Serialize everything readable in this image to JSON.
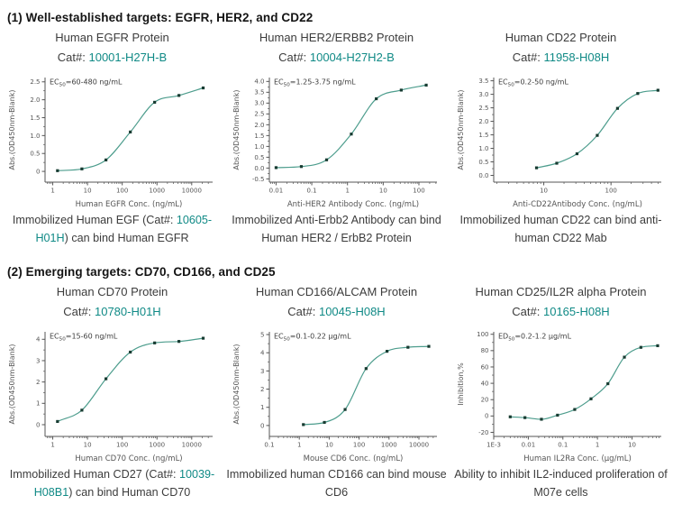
{
  "colors": {
    "teal_text": "#108a86",
    "curve": "#4d9d8d",
    "marker": "#173b31",
    "heading": "#141414",
    "body_text": "#3c3c3c",
    "axis": "#555555"
  },
  "sections": [
    {
      "heading": "(1) Well-established targets: EGFR, HER2, and CD22",
      "panels": [
        {
          "title": "Human EGFR Protein",
          "cat_label": "Cat#: ",
          "cat_number": "10001-H27H-B",
          "caption": [
            {
              "t": "Immobilized Human EGF (Cat#: "
            },
            {
              "t": "10605-H01H",
              "teal": true
            },
            {
              "t": ") can bind Human EGFR"
            }
          ]
        },
        {
          "title": "Human HER2/ERBB2 Protein",
          "cat_label": "Cat#: ",
          "cat_number": "10004-H27H2-B",
          "caption": [
            {
              "t": "Immobilized Anti-Erbb2 Antibody can bind Human HER2 / ErbB2 Protein"
            }
          ]
        },
        {
          "title": "Human CD22 Protein",
          "cat_label": "Cat#: ",
          "cat_number": "11958-H08H",
          "caption": [
            {
              "t": "Immobilized human CD22 can bind anti-human CD22 Mab"
            }
          ]
        }
      ]
    },
    {
      "heading": "(2) Emerging targets: CD70, CD166, and CD25",
      "panels": [
        {
          "title": "Human CD70 Protein",
          "cat_label": "Cat#: ",
          "cat_number": "10780-H01H",
          "caption": [
            {
              "t": "Immobilized Human CD27 (Cat#: "
            },
            {
              "t": "10039-H08B1",
              "teal": true
            },
            {
              "t": ") can bind Human CD70"
            }
          ]
        },
        {
          "title": "Human CD166/ALCAM Protein",
          "cat_label": "Cat#: ",
          "cat_number": "10045-H08H",
          "caption": [
            {
              "t": "Immobilized human CD166 can bind mouse CD6"
            }
          ]
        },
        {
          "title": "Human CD25/IL2R alpha Protein",
          "cat_label": "Cat#: ",
          "cat_number": "10165-H08H",
          "caption": [
            {
              "t": "Ability to inhibit IL2-induced proliferation of M07e cells"
            }
          ]
        }
      ]
    }
  ],
  "chart_data": [
    {
      "type": "line",
      "xlog": true,
      "x": [
        1.37,
        6.9,
        34,
        171,
        857,
        4290,
        21400
      ],
      "y": [
        0.02,
        0.07,
        0.32,
        1.1,
        1.93,
        2.12,
        2.33
      ],
      "xlim": [
        0.6,
        40000
      ],
      "ylim": [
        -0.3,
        2.62
      ],
      "yticks": [
        0,
        0.5,
        1.0,
        1.5,
        2.0,
        2.5
      ],
      "ytick_labels": [
        "0",
        "0.5",
        "1.0",
        "1.5",
        "2.0",
        "2.5"
      ],
      "xticks": [
        1,
        10,
        100,
        1000,
        10000
      ],
      "xtick_labels": [
        "1",
        "10",
        "100",
        "1000",
        "10000"
      ],
      "xlabel": "Human EGFR Conc. (ng/mL)",
      "ylabel": "Abs.(OD450nm-Blank)",
      "annotation": {
        "pre": "EC",
        "sub": "50",
        "post": "=60-480 ng/mL"
      }
    },
    {
      "type": "line",
      "xlog": true,
      "x": [
        0.01,
        0.051,
        0.26,
        1.28,
        6.4,
        32,
        160
      ],
      "y": [
        0.02,
        0.07,
        0.38,
        1.57,
        3.2,
        3.6,
        3.83
      ],
      "xlim": [
        0.0065,
        320
      ],
      "ylim": [
        -0.65,
        4.18
      ],
      "yticks": [
        -0.5,
        0,
        0.5,
        1,
        1.5,
        2,
        2.5,
        3,
        3.5,
        4
      ],
      "ytick_labels": [
        "-0.5",
        "0.0",
        "0.5",
        "1.0",
        "1.5",
        "2.0",
        "2.5",
        "3.0",
        "3.5",
        "4.0"
      ],
      "xticks": [
        0.01,
        0.1,
        1,
        10,
        100
      ],
      "xtick_labels": [
        "0.01",
        "0.1",
        "1",
        "10",
        "100"
      ],
      "xlabel": "Anti-HER2 Antibody Conc. (ng/mL)",
      "ylabel": "Abs.(OD450nm-Blank)",
      "annotation": {
        "pre": "EC",
        "sub": "50",
        "post": "=1.25-3.75 ng/mL"
      }
    },
    {
      "type": "line",
      "xlog": true,
      "x": [
        7.8,
        15.6,
        31.2,
        62.5,
        125,
        250,
        500
      ],
      "y": [
        0.28,
        0.45,
        0.8,
        1.48,
        2.48,
        3.03,
        3.15
      ],
      "xlim": [
        1.8,
        560
      ],
      "ylim": [
        -0.25,
        3.62
      ],
      "yticks": [
        0,
        0.5,
        1,
        1.5,
        2,
        2.5,
        3,
        3.5
      ],
      "ytick_labels": [
        "0.0",
        "0.5",
        "1.0",
        "1.5",
        "2.0",
        "2.5",
        "3.0",
        "3.5"
      ],
      "xticks": [
        10,
        100
      ],
      "xtick_labels": [
        "10",
        "100"
      ],
      "xlabel": "Anti-CD22Antibody Conc. (ng/mL)",
      "ylabel": "Abs.(OD450nm-Blank)",
      "annotation": {
        "pre": "EC",
        "sub": "50",
        "post": "=0.2-50 ng/mL"
      }
    },
    {
      "type": "line",
      "xlog": true,
      "x": [
        1.37,
        6.9,
        34,
        171,
        857,
        4290,
        21400
      ],
      "y": [
        0.15,
        0.68,
        2.15,
        3.4,
        3.83,
        3.9,
        4.05
      ],
      "xlim": [
        0.6,
        40000
      ],
      "ylim": [
        -0.55,
        4.35
      ],
      "yticks": [
        0,
        1,
        2,
        3,
        4
      ],
      "ytick_labels": [
        "0",
        "1",
        "2",
        "3",
        "4"
      ],
      "xticks": [
        1,
        10,
        100,
        1000,
        10000
      ],
      "xtick_labels": [
        "1",
        "10",
        "100",
        "1000",
        "10000"
      ],
      "xlabel": "Human CD70 Conc. (ng/mL)",
      "ylabel": "Abs.(OD450nm-Blank)",
      "annotation": {
        "pre": "EC",
        "sub": "50",
        "post": "=15-60 ng/mL"
      }
    },
    {
      "type": "line",
      "xlog": true,
      "x": [
        1.37,
        6.9,
        34,
        171,
        857,
        4290,
        21400
      ],
      "y": [
        0.05,
        0.17,
        0.88,
        3.13,
        4.08,
        4.3,
        4.35
      ],
      "xlim": [
        0.1,
        40000
      ],
      "ylim": [
        -0.6,
        5.15
      ],
      "yticks": [
        0,
        1,
        2,
        3,
        4,
        5
      ],
      "ytick_labels": [
        "0",
        "1",
        "2",
        "3",
        "4",
        "5"
      ],
      "xticks": [
        0.1,
        1,
        10,
        100,
        1000,
        10000
      ],
      "xtick_labels": [
        "0.1",
        "1",
        "10",
        "100",
        "1000",
        "10000"
      ],
      "xlabel": "Mouse CD6 Conc. (ng/mL)",
      "ylabel": "Abs.(OD450nm-Blank)",
      "annotation": {
        "pre": "EC",
        "sub": "50",
        "post": "=0.1-0.22 µg/mL"
      }
    },
    {
      "type": "line",
      "xlog": true,
      "x": [
        0.003,
        0.008,
        0.024,
        0.07,
        0.22,
        0.65,
        2,
        6,
        18,
        55
      ],
      "y": [
        -1,
        -2,
        -4,
        1,
        8,
        21,
        39.5,
        72,
        84,
        86
      ],
      "xlim": [
        0.001,
        70
      ],
      "ylim": [
        -25,
        103
      ],
      "yticks": [
        -20,
        0,
        20,
        40,
        60,
        80,
        100
      ],
      "ytick_labels": [
        "-20",
        "0",
        "20",
        "40",
        "60",
        "80",
        "100"
      ],
      "xticks": [
        0.001,
        0.01,
        0.1,
        1,
        10
      ],
      "xtick_labels": [
        "1E-3",
        "0.01",
        "0.1",
        "1",
        "10"
      ],
      "xlabel": "Human IL2Ra Conc. (µg/mL)",
      "ylabel": "Inhibition,%",
      "annotation": {
        "pre": "ED",
        "sub": "50",
        "post": "=0.2-1.2 µg/mL"
      }
    }
  ]
}
